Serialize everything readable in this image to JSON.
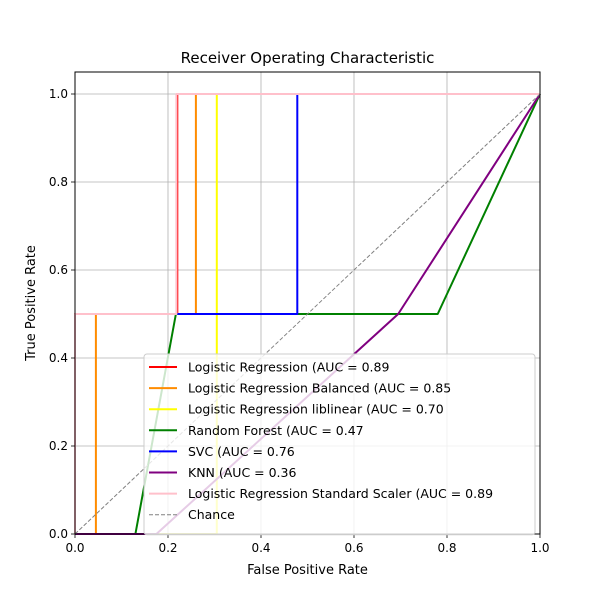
{
  "chart_data": {
    "type": "line",
    "title": "Receiver Operating Characteristic",
    "xlabel": "False Positive Rate",
    "ylabel": "True Positive Rate",
    "xlim": [
      0,
      1
    ],
    "ylim": [
      0,
      1.05
    ],
    "xticks": [
      "0.0",
      "0.2",
      "0.4",
      "0.6",
      "0.8",
      "1.0"
    ],
    "yticks": [
      "0.0",
      "0.2",
      "0.4",
      "0.6",
      "0.8",
      "1.0"
    ],
    "grid": true,
    "legend_position": "lower-right",
    "series": [
      {
        "name": "Logistic Regression (AUC = 0.89",
        "color": "#ff0000",
        "x": [
          0,
          0,
          0.22,
          0.22,
          1
        ],
        "y": [
          0,
          0.5,
          0.5,
          1,
          1
        ]
      },
      {
        "name": "Logistic Regression Balanced (AUC = 0.85",
        "color": "#ff8c00",
        "x": [
          0,
          0.045,
          0.045,
          0.26,
          0.26,
          1
        ],
        "y": [
          0,
          0,
          0.5,
          0.5,
          1,
          1
        ]
      },
      {
        "name": "Logistic Regression liblinear (AUC = 0.70",
        "color": "#ffff00",
        "x": [
          0,
          0.305,
          0.305,
          1
        ],
        "y": [
          0,
          0,
          1,
          1
        ]
      },
      {
        "name": "Random Forest (AUC = 0.47",
        "color": "#008000",
        "x": [
          0,
          0.13,
          0.217,
          0.78,
          1
        ],
        "y": [
          0,
          0,
          0.5,
          0.5,
          1
        ]
      },
      {
        "name": "SVC (AUC = 0.76",
        "color": "#0000ff",
        "x": [
          0.22,
          0.478,
          0.478,
          1
        ],
        "y": [
          0.5,
          0.5,
          1,
          1
        ]
      },
      {
        "name": "KNN (AUC = 0.36",
        "color": "#800080",
        "x": [
          0,
          0.175,
          0.695,
          1
        ],
        "y": [
          0,
          0,
          0.5,
          1
        ]
      },
      {
        "name": "Logistic Regression Standard Scaler (AUC = 0.89",
        "color": "#ffc0cb",
        "x": [
          0,
          0,
          0.218,
          0.218,
          1
        ],
        "y": [
          0,
          0.5,
          0.5,
          1,
          1
        ]
      },
      {
        "name": "Chance",
        "color": "#808080",
        "dashed": true,
        "x": [
          0,
          1
        ],
        "y": [
          0,
          1
        ]
      }
    ]
  }
}
